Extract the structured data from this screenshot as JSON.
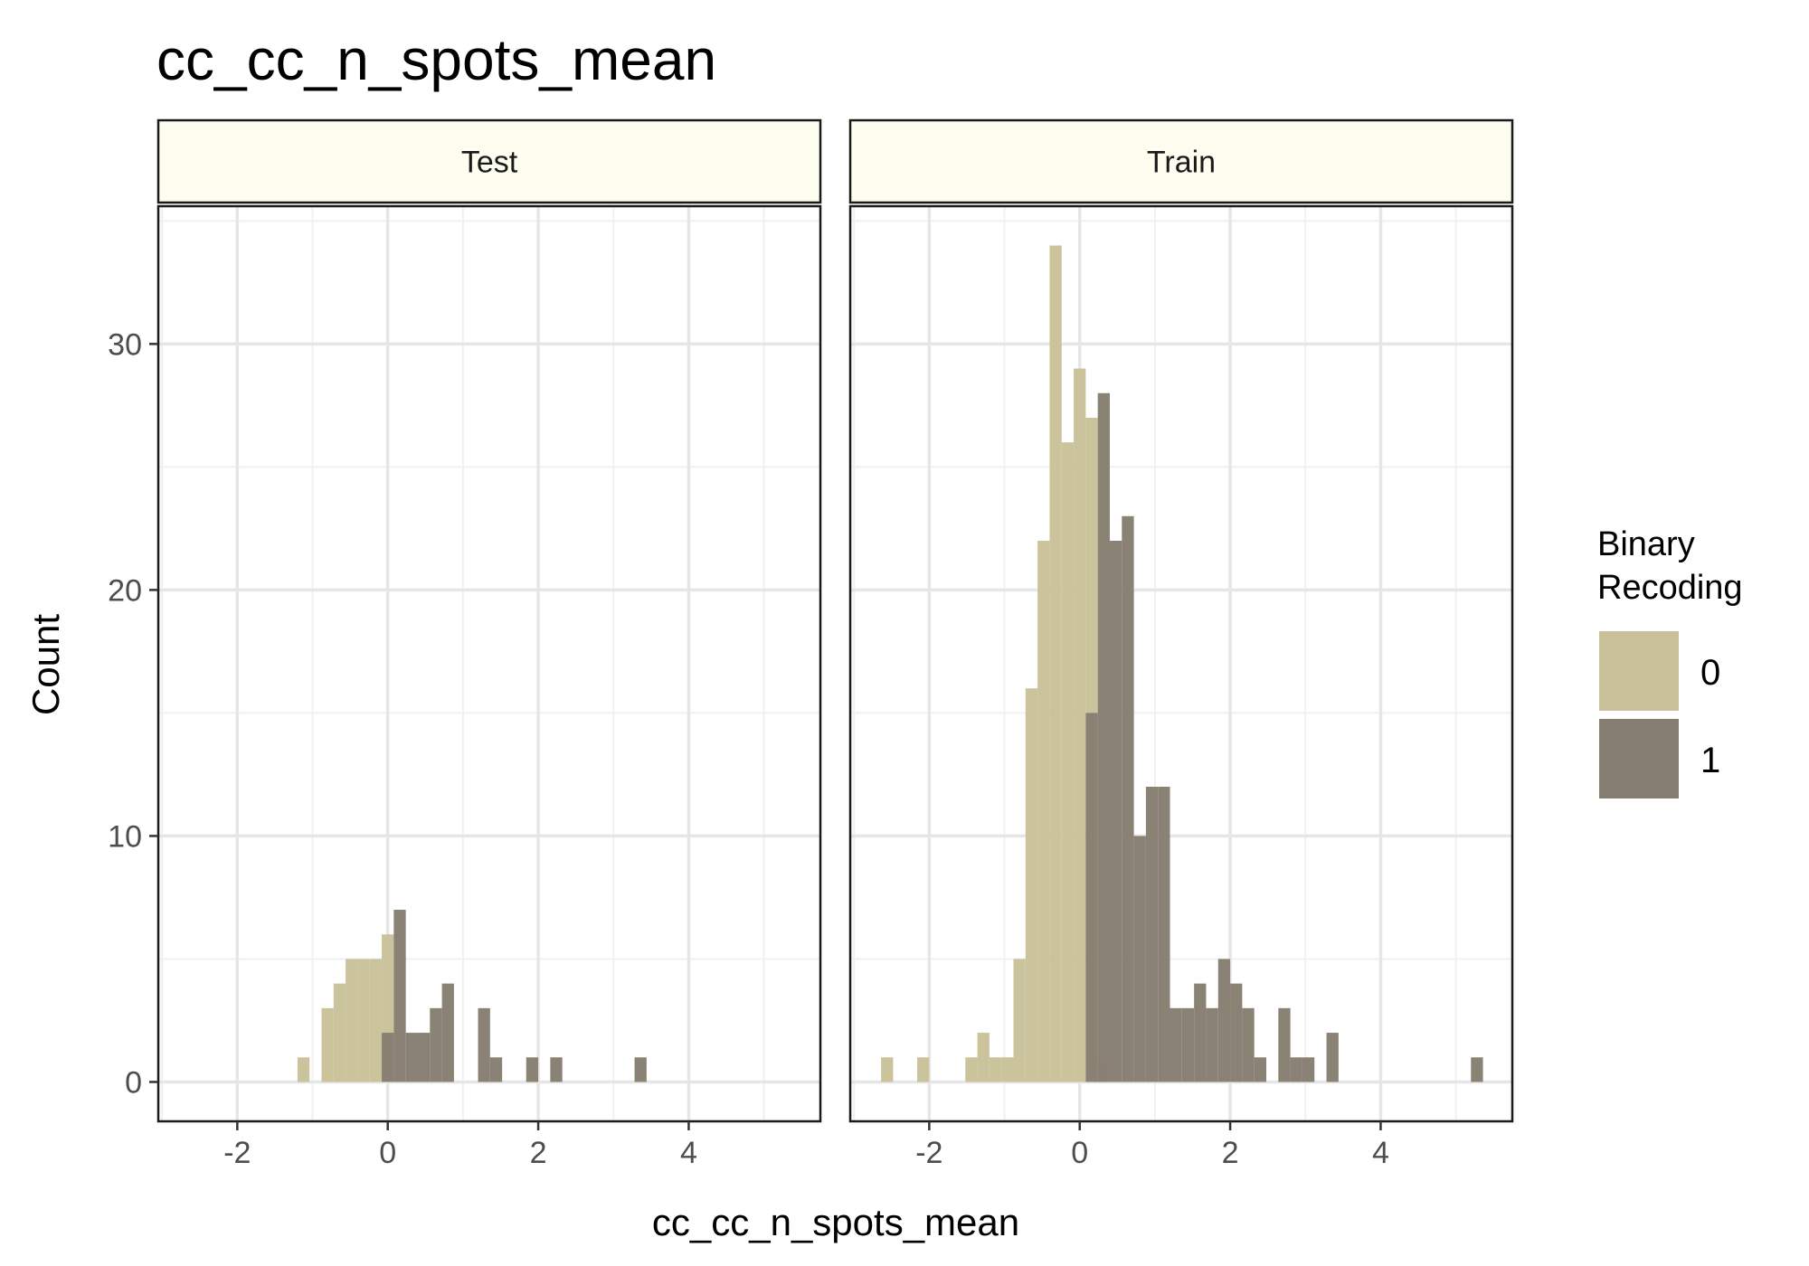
{
  "chart_data": {
    "type": "bar",
    "title": "cc_cc_n_spots_mean",
    "xlabel": "cc_cc_n_spots_mean",
    "ylabel": "Count",
    "xlim": [
      -3.05,
      5.75
    ],
    "ylim": [
      -1.6,
      35.6
    ],
    "x_ticks": [
      -2,
      0,
      2,
      4
    ],
    "y_ticks": [
      0,
      10,
      20,
      30
    ],
    "grid": true,
    "bin_width": 0.16,
    "legend": {
      "title": [
        "Binary",
        "Recoding"
      ],
      "position": "right",
      "entries": [
        {
          "label": "0",
          "color": "#c8c199"
        },
        {
          "label": "1",
          "color": "#877e72"
        }
      ]
    },
    "colors": {
      "panel_border": "#1a1a1a",
      "strip_fill": "#fdfdf0",
      "grid_major": "#e6e6e6",
      "grid_minor": "#f0f0f0"
    },
    "panels": [
      {
        "label": "Test",
        "series": [
          {
            "name": "0",
            "bars": [
              {
                "x": -1.12,
                "y": 1
              },
              {
                "x": -0.8,
                "y": 3
              },
              {
                "x": -0.64,
                "y": 4
              },
              {
                "x": -0.48,
                "y": 5
              },
              {
                "x": -0.32,
                "y": 5
              },
              {
                "x": -0.16,
                "y": 5
              },
              {
                "x": 0.0,
                "y": 6
              }
            ]
          },
          {
            "name": "1",
            "bars": [
              {
                "x": 0.0,
                "y": 2
              },
              {
                "x": 0.16,
                "y": 7
              },
              {
                "x": 0.32,
                "y": 2
              },
              {
                "x": 0.48,
                "y": 2
              },
              {
                "x": 0.64,
                "y": 3
              },
              {
                "x": 0.8,
                "y": 4
              },
              {
                "x": 1.28,
                "y": 3
              },
              {
                "x": 1.44,
                "y": 1
              },
              {
                "x": 1.92,
                "y": 1
              },
              {
                "x": 2.24,
                "y": 1
              },
              {
                "x": 3.36,
                "y": 1
              }
            ]
          }
        ]
      },
      {
        "label": "Train",
        "series": [
          {
            "name": "0",
            "bars": [
              {
                "x": -2.56,
                "y": 1
              },
              {
                "x": -2.08,
                "y": 1
              },
              {
                "x": -1.44,
                "y": 1
              },
              {
                "x": -1.28,
                "y": 2
              },
              {
                "x": -1.12,
                "y": 1
              },
              {
                "x": -0.96,
                "y": 1
              },
              {
                "x": -0.8,
                "y": 5
              },
              {
                "x": -0.64,
                "y": 16
              },
              {
                "x": -0.48,
                "y": 22
              },
              {
                "x": -0.32,
                "y": 34
              },
              {
                "x": -0.16,
                "y": 26
              },
              {
                "x": 0.0,
                "y": 29
              },
              {
                "x": 0.16,
                "y": 27
              },
              {
                "x": 0.32,
                "y": 1
              }
            ]
          },
          {
            "name": "1",
            "bars": [
              {
                "x": 0.16,
                "y": 15
              },
              {
                "x": 0.32,
                "y": 28
              },
              {
                "x": 0.48,
                "y": 22
              },
              {
                "x": 0.64,
                "y": 23
              },
              {
                "x": 0.8,
                "y": 10
              },
              {
                "x": 0.96,
                "y": 12
              },
              {
                "x": 1.12,
                "y": 12
              },
              {
                "x": 1.28,
                "y": 3
              },
              {
                "x": 1.44,
                "y": 3
              },
              {
                "x": 1.6,
                "y": 4
              },
              {
                "x": 1.76,
                "y": 3
              },
              {
                "x": 1.92,
                "y": 5
              },
              {
                "x": 2.08,
                "y": 4
              },
              {
                "x": 2.24,
                "y": 3
              },
              {
                "x": 2.4,
                "y": 1
              },
              {
                "x": 2.72,
                "y": 3
              },
              {
                "x": 2.88,
                "y": 1
              },
              {
                "x": 3.04,
                "y": 1
              },
              {
                "x": 3.36,
                "y": 2
              },
              {
                "x": 5.28,
                "y": 1
              }
            ]
          }
        ]
      }
    ]
  }
}
